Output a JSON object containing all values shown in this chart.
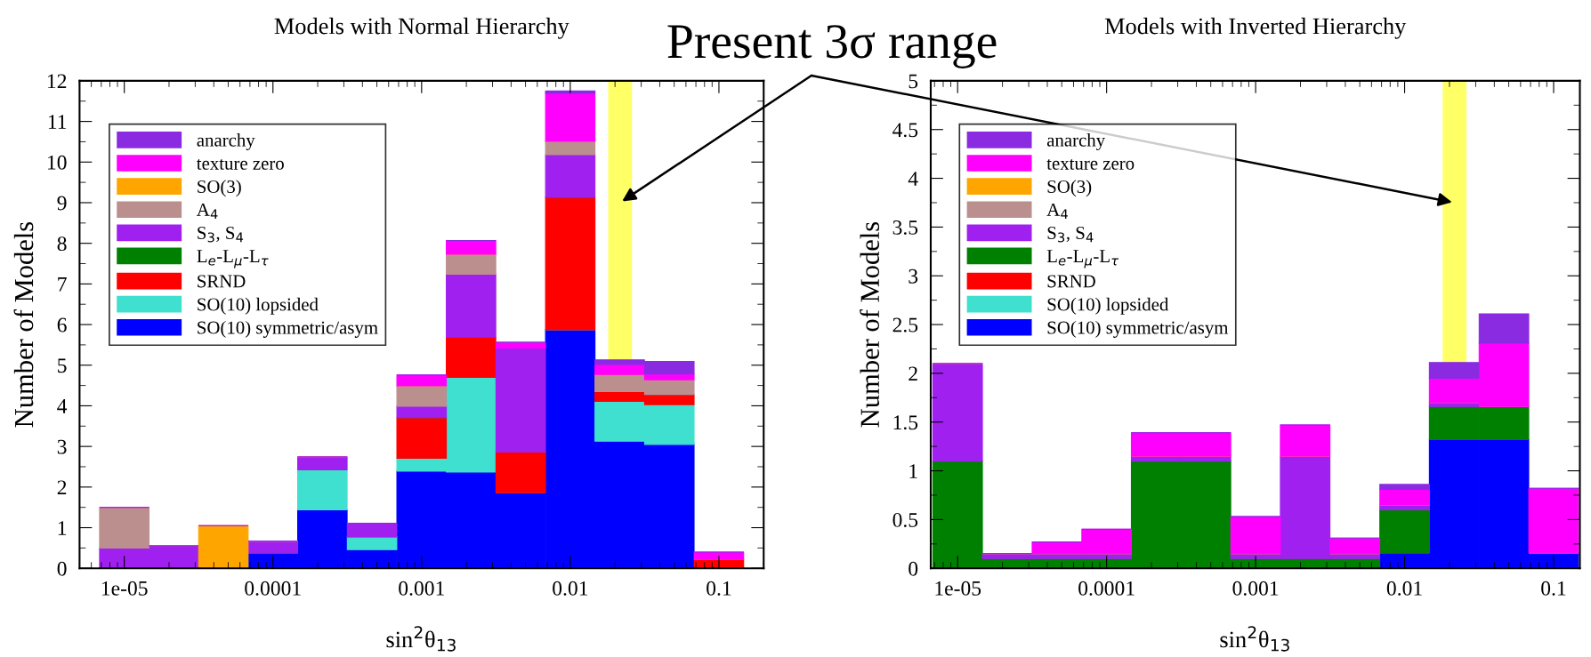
{
  "chart_data": [
    {
      "type": "bar",
      "stacked": true,
      "title": "Models with Normal Hierarchy",
      "xlabel": "sin$^{2}$θ$_{13}$",
      "ylabel": "Number of Models",
      "log": "x",
      "x": [
        1e-05,
        2.15e-05,
        4.64e-05,
        0.0001,
        0.000215,
        0.000464,
        0.001,
        0.00215,
        0.00464,
        0.01,
        0.0215,
        0.0464,
        0.1
      ],
      "xlim": [
        5e-06,
        0.2
      ],
      "xticks": [
        {
          "value": 1e-05,
          "label": "1e-05"
        },
        0.0001,
        0.001,
        0.01,
        0.1
      ],
      "ylim": [
        0,
        12
      ],
      "yticks": [
        0,
        1,
        2,
        3,
        4,
        5,
        6,
        7,
        8,
        9,
        10,
        11,
        12
      ],
      "grid": false,
      "legend": "top left",
      "bands": [
        {
          "axis": "x",
          "from": 0.018,
          "to": 0.026,
          "color": "#ffff66"
        }
      ],
      "annotations": [
        "Present 3σ range"
      ],
      "series": [
        {
          "name": "SO(10) symmetric/asym",
          "color": "#0000ff",
          "values": [
            0,
            0,
            0,
            0.38,
            1.44,
            0.46,
            2.39,
            2.37,
            1.86,
            5.87,
            3.13,
            3.05,
            0
          ]
        },
        {
          "name": "SO(10) lopsided",
          "color": "#40e0d0",
          "values": [
            0,
            0,
            0,
            0,
            0.99,
            0.32,
            0.32,
            2.33,
            0,
            0,
            0.98,
            0.98,
            0
          ]
        },
        {
          "name": "SRND",
          "color": "#ff0000",
          "values": [
            0,
            0,
            0,
            0,
            0,
            0,
            1.0,
            0.99,
            1.0,
            3.26,
            0.24,
            0.25,
            0.22
          ]
        },
        {
          "name": "L$_{e}$-L$_{μ}$-L$_{τ}$",
          "color": "#008000",
          "values": [
            0,
            0,
            0,
            0,
            0,
            0,
            0,
            0,
            0,
            0,
            0,
            0,
            0
          ]
        },
        {
          "name": "S$_{3}$, S$_{4}$",
          "color": "#a020f0",
          "values": [
            0.5,
            0.55,
            0,
            0.29,
            0.31,
            0.33,
            0.28,
            1.55,
            2.56,
            1.05,
            0,
            0,
            0
          ]
        },
        {
          "name": "A$_{4}$",
          "color": "#bc8f8f",
          "values": [
            1.0,
            0,
            0,
            0,
            0,
            0,
            0.5,
            0.49,
            0,
            0.33,
            0.42,
            0.36,
            0
          ]
        },
        {
          "name": "SO(3)",
          "color": "#ffa500",
          "values": [
            0,
            0,
            1.05,
            0,
            0,
            0,
            0,
            0,
            0,
            0,
            0,
            0,
            0
          ]
        },
        {
          "name": "texture zero",
          "color": "#ff00ff",
          "values": [
            0,
            0,
            0,
            0,
            0,
            0,
            0.27,
            0.34,
            0.14,
            1.18,
            0.25,
            0.14,
            0.18
          ]
        },
        {
          "name": "anarchy",
          "color": "#8a2be2",
          "values": [
            0,
            0,
            0,
            0,
            0,
            0,
            0,
            0,
            0,
            0.06,
            0.11,
            0.31,
            0
          ]
        }
      ]
    },
    {
      "type": "bar",
      "stacked": true,
      "title": "Models with Inverted Hierarchy",
      "xlabel": "sin$^{2}$θ$_{13}$",
      "ylabel": "Number of Models",
      "log": "x",
      "x": [
        1e-05,
        2.15e-05,
        4.64e-05,
        0.0001,
        0.000215,
        0.000464,
        0.001,
        0.00215,
        0.00464,
        0.01,
        0.0215,
        0.0464,
        0.1
      ],
      "xlim": [
        6.6e-06,
        0.15
      ],
      "xticks": [
        {
          "value": 1e-05,
          "label": "1e-05"
        },
        0.0001,
        0.001,
        0.01,
        0.1
      ],
      "ylim": [
        0,
        5
      ],
      "yticks": [
        0,
        0.5,
        1,
        1.5,
        2,
        2.5,
        3,
        3.5,
        4,
        4.5,
        5
      ],
      "grid": false,
      "legend": "top left",
      "bands": [
        {
          "axis": "x",
          "from": 0.018,
          "to": 0.026,
          "color": "#ffff66"
        }
      ],
      "series": [
        {
          "name": "SO(10) symmetric/asym",
          "color": "#0000ff",
          "values": [
            0,
            0,
            0,
            0,
            0,
            0,
            0,
            0,
            0,
            0.16,
            1.32,
            1.32,
            0.16
          ]
        },
        {
          "name": "SO(10) lopsided",
          "color": "#40e0d0",
          "values": [
            0,
            0,
            0,
            0,
            0,
            0,
            0,
            0,
            0,
            0,
            0,
            0,
            0
          ]
        },
        {
          "name": "SRND",
          "color": "#ff0000",
          "values": [
            0,
            0,
            0,
            0,
            0,
            0,
            0,
            0,
            0,
            0,
            0,
            0,
            0
          ]
        },
        {
          "name": "L$_{e}$-L$_{μ}$-L$_{τ}$",
          "color": "#008000",
          "values": [
            1.1,
            0.1,
            0.1,
            0.1,
            1.1,
            1.1,
            0.1,
            0.1,
            0.1,
            0.44,
            0.34,
            0.34,
            0
          ]
        },
        {
          "name": "S$_{3}$, S$_{4}$",
          "color": "#a020f0",
          "values": [
            1.0,
            0.05,
            0.05,
            0.05,
            0.05,
            0.05,
            0.05,
            1.05,
            0.05,
            0.05,
            0.04,
            0,
            0
          ]
        },
        {
          "name": "A$_{4}$",
          "color": "#bc8f8f",
          "values": [
            0,
            0,
            0,
            0,
            0,
            0,
            0,
            0,
            0,
            0,
            0,
            0,
            0
          ]
        },
        {
          "name": "SO(3)",
          "color": "#ffa500",
          "values": [
            0,
            0,
            0,
            0,
            0,
            0,
            0,
            0,
            0,
            0,
            0,
            0,
            0
          ]
        },
        {
          "name": "texture zero",
          "color": "#ff00ff",
          "values": [
            0,
            0,
            0.12,
            0.25,
            0.24,
            0.24,
            0.38,
            0.32,
            0.16,
            0.16,
            0.25,
            0.65,
            0.66
          ]
        },
        {
          "name": "anarchy",
          "color": "#8a2be2",
          "values": [
            0,
            0,
            0,
            0,
            0,
            0,
            0,
            0,
            0,
            0.05,
            0.16,
            0.3,
            0
          ]
        }
      ]
    }
  ]
}
